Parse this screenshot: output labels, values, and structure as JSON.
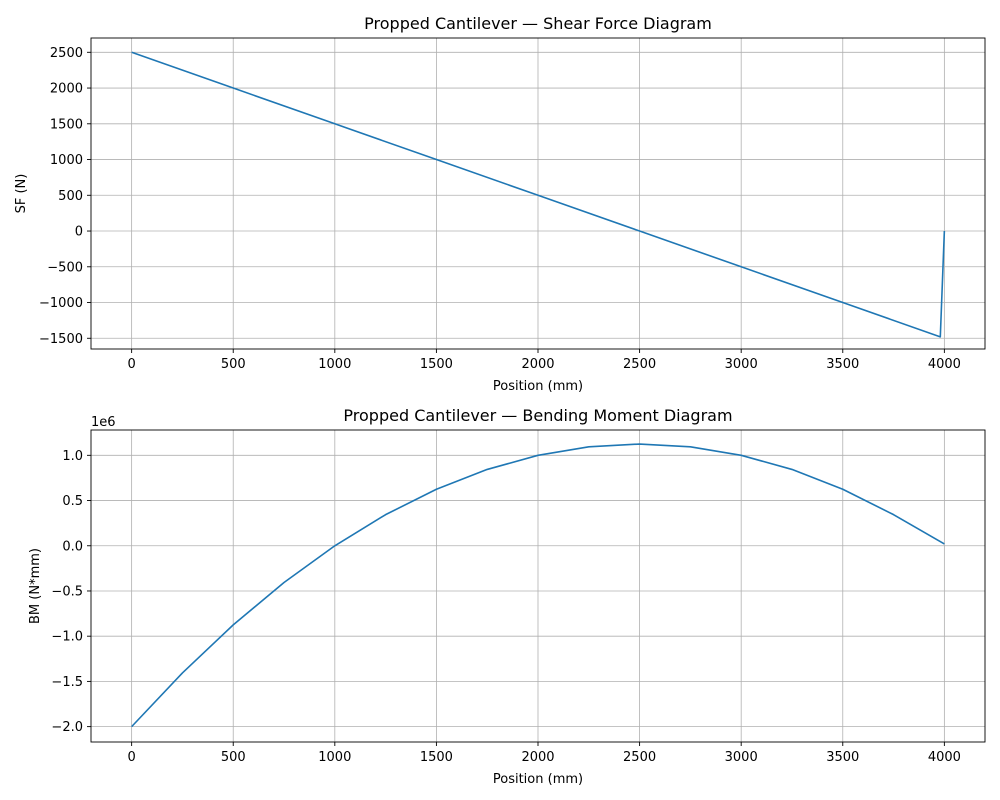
{
  "colors": {
    "line": "#1f77b4",
    "grid": "#b0b0b0",
    "axes": "#000000",
    "background": "#ffffff"
  },
  "chart_data": [
    {
      "type": "line",
      "title": "Propped Cantilever — Shear Force Diagram",
      "xlabel": "Position (mm)",
      "ylabel": "SF (N)",
      "xlim": [
        -200,
        4200
      ],
      "ylim": [
        -1650,
        2700
      ],
      "xticks": [
        0,
        500,
        1000,
        1500,
        2000,
        2500,
        3000,
        3500,
        4000
      ],
      "xtick_labels": [
        "0",
        "500",
        "1000",
        "1500",
        "2000",
        "2500",
        "3000",
        "3500",
        "4000"
      ],
      "yticks": [
        -1500,
        -1000,
        -500,
        0,
        500,
        1000,
        1500,
        2000,
        2500
      ],
      "ytick_labels": [
        "−1500",
        "−1000",
        "−500",
        "0",
        "500",
        "1000",
        "1500",
        "2000",
        "2500"
      ],
      "grid": true,
      "series": [
        {
          "x": [
            0,
            500,
            1000,
            1500,
            2000,
            2500,
            3000,
            3500,
            3980,
            4000
          ],
          "y": [
            2500,
            2000,
            1500,
            1000,
            500,
            0,
            -500,
            -1000,
            -1480,
            0
          ]
        }
      ]
    },
    {
      "type": "line",
      "title": "Propped Cantilever — Bending Moment Diagram",
      "xlabel": "Position (mm)",
      "ylabel": "BM (N*mm)",
      "scale_label": "1e6",
      "xlim": [
        -200,
        4200
      ],
      "ylim": [
        -2.17,
        1.28
      ],
      "xticks": [
        0,
        500,
        1000,
        1500,
        2000,
        2500,
        3000,
        3500,
        4000
      ],
      "xtick_labels": [
        "0",
        "500",
        "1000",
        "1500",
        "2000",
        "2500",
        "3000",
        "3500",
        "4000"
      ],
      "yticks": [
        -2.0,
        -1.5,
        -1.0,
        -0.5,
        0.0,
        0.5,
        1.0
      ],
      "ytick_labels": [
        "−2.0",
        "−1.5",
        "−1.0",
        "−0.5",
        "0.0",
        "0.5",
        "1.0"
      ],
      "grid": true,
      "series": [
        {
          "x": [
            0,
            250,
            500,
            750,
            1000,
            1250,
            1500,
            1750,
            2000,
            2250,
            2500,
            2750,
            3000,
            3250,
            3500,
            3750,
            4000
          ],
          "y": [
            -2.0,
            -1.406,
            -0.875,
            -0.406,
            0.0,
            0.344,
            0.625,
            0.844,
            1.0,
            1.094,
            1.125,
            1.094,
            1.0,
            0.844,
            0.625,
            0.344,
            0.02
          ]
        }
      ]
    }
  ]
}
